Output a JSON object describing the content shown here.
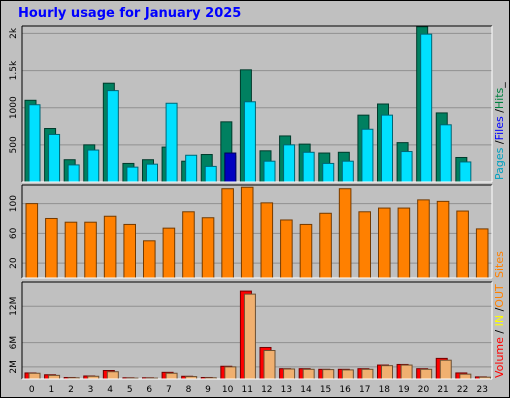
{
  "title": "Hourly usage for January 2025",
  "legend_top": [
    {
      "text": "Pages",
      "color": "#00a0c0"
    },
    {
      "text": " /",
      "color": "#000000"
    },
    {
      "text": "Files",
      "color": "#0000ff"
    },
    {
      "text": " /",
      "color": "#000000"
    },
    {
      "text": "Hits",
      "color": "#008040"
    },
    {
      "text": "_",
      "color": "#000000"
    }
  ],
  "legend_mid": [
    {
      "text": "Sites",
      "color": "#ff8000"
    }
  ],
  "legend_bot": [
    {
      "text": "Volume",
      "color": "#ff0000"
    },
    {
      "text": " / ",
      "color": "#000000"
    },
    {
      "text": "IN",
      "color": "#ffff00"
    },
    {
      "text": " /",
      "color": "#000000"
    },
    {
      "text": "OUT",
      "color": "#ff8000"
    }
  ],
  "chart_data": [
    {
      "type": "bar",
      "name": "hits-files-pages",
      "categories": [
        "0",
        "1",
        "2",
        "3",
        "4",
        "5",
        "6",
        "7",
        "8",
        "9",
        "10",
        "11",
        "12",
        "13",
        "14",
        "15",
        "16",
        "17",
        "18",
        "19",
        "20",
        "21",
        "22",
        "23"
      ],
      "y_tick_labels": [
        "500",
        "1000",
        "1.5k",
        "2k"
      ],
      "y_ticks": [
        500,
        1000,
        1500,
        2000
      ],
      "ylim": [
        0,
        2100
      ],
      "series": [
        {
          "name": "Hits",
          "color": "#008060",
          "values": [
            1100,
            720,
            300,
            500,
            1330,
            250,
            300,
            470,
            280,
            370,
            810,
            1510,
            420,
            620,
            510,
            390,
            400,
            900,
            1050,
            530,
            2090,
            930,
            330,
            0
          ]
        },
        {
          "name": "Files",
          "color": "#00e0ff",
          "values": [
            1040,
            640,
            230,
            430,
            1230,
            200,
            240,
            1060,
            360,
            210,
            350,
            1080,
            280,
            500,
            400,
            250,
            280,
            710,
            900,
            410,
            1990,
            770,
            270,
            0
          ]
        },
        {
          "name": "Pages",
          "color": "#0000c0",
          "values": [
            0,
            0,
            0,
            0,
            0,
            0,
            0,
            0,
            0,
            0,
            390,
            0,
            0,
            0,
            0,
            0,
            0,
            0,
            0,
            0,
            0,
            0,
            0,
            0
          ]
        }
      ]
    },
    {
      "type": "bar",
      "name": "sites",
      "categories": [
        "0",
        "1",
        "2",
        "3",
        "4",
        "5",
        "6",
        "7",
        "8",
        "9",
        "10",
        "11",
        "12",
        "13",
        "14",
        "15",
        "16",
        "17",
        "18",
        "19",
        "20",
        "21",
        "22",
        "23"
      ],
      "y_tick_labels": [
        "20",
        "60",
        "100"
      ],
      "y_ticks": [
        20,
        60,
        100
      ],
      "ylim": [
        0,
        125
      ],
      "series": [
        {
          "name": "Sites",
          "color": "#ff8000",
          "values": [
            100,
            80,
            75,
            75,
            83,
            72,
            50,
            67,
            89,
            81,
            120,
            122,
            101,
            78,
            72,
            87,
            120,
            89,
            94,
            94,
            105,
            103,
            90,
            66
          ]
        }
      ]
    },
    {
      "type": "bar",
      "name": "volume",
      "categories": [
        "0",
        "1",
        "2",
        "3",
        "4",
        "5",
        "6",
        "7",
        "8",
        "9",
        "10",
        "11",
        "12",
        "13",
        "14",
        "15",
        "16",
        "17",
        "18",
        "19",
        "20",
        "21",
        "22",
        "23"
      ],
      "y_tick_labels": [
        "2M",
        "6M",
        "12M"
      ],
      "y_ticks": [
        2,
        6,
        12
      ],
      "ylim": [
        0,
        16
      ],
      "series": [
        {
          "name": "Volume",
          "color": "#ff0000",
          "values": [
            1.0,
            0.7,
            0.25,
            0.5,
            1.4,
            0.2,
            0.2,
            1.1,
            0.45,
            0.25,
            2.1,
            14.5,
            5.2,
            1.7,
            1.7,
            1.6,
            1.6,
            1.7,
            2.3,
            2.4,
            1.7,
            3.4,
            1.0,
            0.35
          ]
        },
        {
          "name": "OUT",
          "color": "#f0b070",
          "values": [
            0.95,
            0.6,
            0.2,
            0.45,
            1.2,
            0.15,
            0.15,
            0.95,
            0.4,
            0.2,
            2.0,
            14.0,
            4.7,
            1.65,
            1.6,
            1.55,
            1.5,
            1.6,
            2.2,
            2.3,
            1.6,
            3.1,
            0.8,
            0.3
          ]
        }
      ]
    }
  ]
}
